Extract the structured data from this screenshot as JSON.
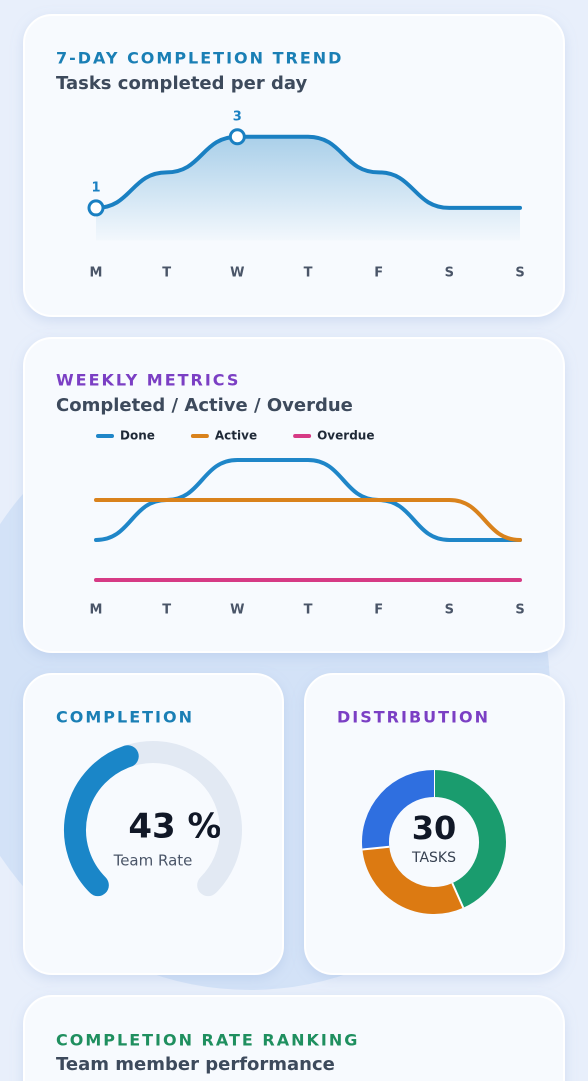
{
  "chart_data": [
    {
      "type": "line",
      "title": "7-DAY COMPLETION TREND",
      "subtitle": "Tasks completed per day",
      "categories": [
        "M",
        "T",
        "W",
        "T",
        "F",
        "S",
        "S"
      ],
      "values": [
        1,
        2,
        3,
        3,
        2,
        1,
        1
      ],
      "color": "#1a80c2",
      "ylim": [
        0,
        3.5
      ]
    },
    {
      "type": "line",
      "title": "WEEKLY METRICS",
      "subtitle": "Completed / Active / Overdue",
      "categories": [
        "M",
        "T",
        "W",
        "T",
        "F",
        "S",
        "S"
      ],
      "series": [
        {
          "name": "Done",
          "color": "#1f86c8",
          "values": [
            1,
            2,
            3,
            3,
            2,
            1,
            1
          ]
        },
        {
          "name": "Active",
          "color": "#d9821c",
          "values": [
            2,
            2,
            2,
            2,
            2,
            2,
            1
          ]
        },
        {
          "name": "Overdue",
          "color": "#d63a85",
          "values": [
            0,
            0,
            0,
            0,
            0,
            0,
            0
          ]
        }
      ],
      "ylim": [
        -0.25,
        3.25
      ]
    },
    {
      "type": "gauge",
      "title": "COMPLETION",
      "value": 43,
      "value_label": "43 %",
      "label": "Team Rate",
      "color": "#1a86c8",
      "ylim": [
        0,
        100
      ]
    },
    {
      "type": "donut",
      "title": "DISTRIBUTION",
      "total": 30,
      "label": "TASKS",
      "values": [
        13,
        9,
        8
      ],
      "colors": [
        "#1a9c6e",
        "#dc7a12",
        "#2f6fe0"
      ]
    }
  ],
  "ranking": {
    "title": "COMPLETION RATE RANKING",
    "subtitle": "Team member performance"
  }
}
